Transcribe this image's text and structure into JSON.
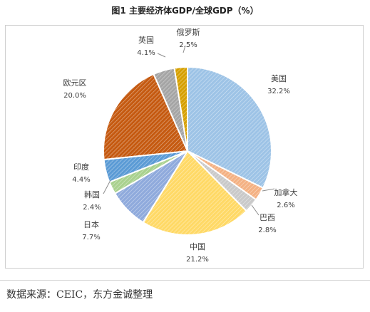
{
  "title": "图1 主要经济体GDP/全球GDP（%）",
  "source": "数据来源：CEIC，东方金诚整理",
  "chart_data": {
    "type": "pie",
    "title": "图1 主要经济体GDP/全球GDP（%）",
    "slices": [
      {
        "name": "美国",
        "value": 32.2,
        "value_label": "32.2%",
        "color": "#9dc3e6"
      },
      {
        "name": "加拿大",
        "value": 2.6,
        "value_label": "2.6%",
        "color": "#f4b183"
      },
      {
        "name": "巴西",
        "value": 2.8,
        "value_label": "2.8%",
        "color": "#c9c9c9"
      },
      {
        "name": "中国",
        "value": 21.2,
        "value_label": "21.2%",
        "color": "#ffd966"
      },
      {
        "name": "日本",
        "value": 7.7,
        "value_label": "7.7%",
        "color": "#8faadc"
      },
      {
        "name": "韩国",
        "value": 2.4,
        "value_label": "2.4%",
        "color": "#a9d18e"
      },
      {
        "name": "印度",
        "value": 4.4,
        "value_label": "4.4%",
        "color": "#5b9bd5"
      },
      {
        "name": "欧元区",
        "value": 20.0,
        "value_label": "20.0%",
        "color": "#c55a11"
      },
      {
        "name": "英国",
        "value": 4.1,
        "value_label": "4.1%",
        "color": "#a5a5a5"
      },
      {
        "name": "俄罗斯",
        "value": 2.5,
        "value_label": "2.5%",
        "color": "#d6a000"
      }
    ]
  }
}
